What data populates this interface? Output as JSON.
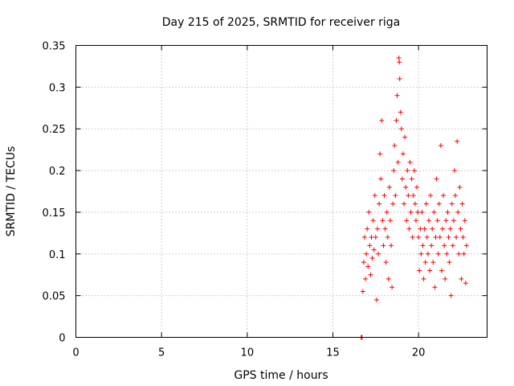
{
  "chart_data": {
    "type": "scatter",
    "title": "Day 215 of 2025, SRMTID for receiver riga",
    "xlabel": "GPS time / hours",
    "ylabel": "SRMTID / TECUs",
    "xlim": [
      0,
      24
    ],
    "ylim": [
      0,
      0.35
    ],
    "x_ticks": [
      0,
      5,
      10,
      15,
      20
    ],
    "x_tick_labels": [
      "0",
      "5",
      "10",
      "15",
      "20"
    ],
    "y_ticks": [
      0,
      0.05,
      0.1,
      0.15,
      0.2,
      0.25,
      0.3,
      0.35
    ],
    "y_tick_labels": [
      "0",
      "0.05",
      "0.1",
      "0.15",
      "0.2",
      "0.25",
      "0.3",
      "0.35"
    ],
    "grid": true,
    "marker": "+",
    "color": "#ff0000",
    "series": [
      {
        "name": "SRMTID",
        "points": [
          [
            16.65,
            0.0
          ],
          [
            16.68,
            0.0
          ],
          [
            16.7,
            0.0
          ],
          [
            16.75,
            0.055
          ],
          [
            16.8,
            0.09
          ],
          [
            16.85,
            0.12
          ],
          [
            16.9,
            0.07
          ],
          [
            16.95,
            0.1
          ],
          [
            17.0,
            0.13
          ],
          [
            17.05,
            0.085
          ],
          [
            17.1,
            0.15
          ],
          [
            17.15,
            0.11
          ],
          [
            17.2,
            0.075
          ],
          [
            17.25,
            0.12
          ],
          [
            17.3,
            0.095
          ],
          [
            17.35,
            0.14
          ],
          [
            17.4,
            0.105
          ],
          [
            17.45,
            0.17
          ],
          [
            17.5,
            0.12
          ],
          [
            17.55,
            0.045
          ],
          [
            17.6,
            0.13
          ],
          [
            17.65,
            0.1
          ],
          [
            17.7,
            0.16
          ],
          [
            17.75,
            0.22
          ],
          [
            17.8,
            0.19
          ],
          [
            17.85,
            0.26
          ],
          [
            17.9,
            0.14
          ],
          [
            17.95,
            0.11
          ],
          [
            18.0,
            0.17
          ],
          [
            18.05,
            0.13
          ],
          [
            18.1,
            0.09
          ],
          [
            18.15,
            0.15
          ],
          [
            18.2,
            0.12
          ],
          [
            18.25,
            0.07
          ],
          [
            18.3,
            0.18
          ],
          [
            18.35,
            0.14
          ],
          [
            18.4,
            0.11
          ],
          [
            18.45,
            0.06
          ],
          [
            18.5,
            0.16
          ],
          [
            18.55,
            0.2
          ],
          [
            18.6,
            0.23
          ],
          [
            18.65,
            0.17
          ],
          [
            18.7,
            0.26
          ],
          [
            18.75,
            0.29
          ],
          [
            18.8,
            0.21
          ],
          [
            18.85,
            0.335
          ],
          [
            18.88,
            0.33
          ],
          [
            18.9,
            0.31
          ],
          [
            18.95,
            0.27
          ],
          [
            19.0,
            0.25
          ],
          [
            19.05,
            0.19
          ],
          [
            19.1,
            0.22
          ],
          [
            19.15,
            0.16
          ],
          [
            19.2,
            0.24
          ],
          [
            19.25,
            0.18
          ],
          [
            19.3,
            0.14
          ],
          [
            19.35,
            0.2
          ],
          [
            19.4,
            0.17
          ],
          [
            19.45,
            0.13
          ],
          [
            19.5,
            0.21
          ],
          [
            19.55,
            0.15
          ],
          [
            19.6,
            0.19
          ],
          [
            19.65,
            0.12
          ],
          [
            19.7,
            0.17
          ],
          [
            19.75,
            0.2
          ],
          [
            19.8,
            0.16
          ],
          [
            19.85,
            0.14
          ],
          [
            19.9,
            0.18
          ],
          [
            19.95,
            0.15
          ],
          [
            20.0,
            0.12
          ],
          [
            20.05,
            0.08
          ],
          [
            20.1,
            0.13
          ],
          [
            20.15,
            0.1
          ],
          [
            20.2,
            0.15
          ],
          [
            20.25,
            0.11
          ],
          [
            20.3,
            0.07
          ],
          [
            20.35,
            0.13
          ],
          [
            20.4,
            0.09
          ],
          [
            20.45,
            0.16
          ],
          [
            20.5,
            0.12
          ],
          [
            20.55,
            0.1
          ],
          [
            20.6,
            0.14
          ],
          [
            20.65,
            0.08
          ],
          [
            20.7,
            0.17
          ],
          [
            20.75,
            0.11
          ],
          [
            20.8,
            0.13
          ],
          [
            20.85,
            0.09
          ],
          [
            20.9,
            0.15
          ],
          [
            20.95,
            0.06
          ],
          [
            21.0,
            0.12
          ],
          [
            21.05,
            0.19
          ],
          [
            21.1,
            0.14
          ],
          [
            21.15,
            0.1
          ],
          [
            21.2,
            0.16
          ],
          [
            21.25,
            0.12
          ],
          [
            21.3,
            0.23
          ],
          [
            21.35,
            0.08
          ],
          [
            21.4,
            0.13
          ],
          [
            21.45,
            0.17
          ],
          [
            21.5,
            0.11
          ],
          [
            21.55,
            0.07
          ],
          [
            21.6,
            0.14
          ],
          [
            21.65,
            0.1
          ],
          [
            21.7,
            0.15
          ],
          [
            21.75,
            0.12
          ],
          [
            21.8,
            0.09
          ],
          [
            21.85,
            0.13
          ],
          [
            21.9,
            0.05
          ],
          [
            21.95,
            0.16
          ],
          [
            22.0,
            0.11
          ],
          [
            22.05,
            0.14
          ],
          [
            22.1,
            0.2
          ],
          [
            22.15,
            0.17
          ],
          [
            22.2,
            0.12
          ],
          [
            22.25,
            0.235
          ],
          [
            22.3,
            0.15
          ],
          [
            22.35,
            0.1
          ],
          [
            22.4,
            0.18
          ],
          [
            22.45,
            0.13
          ],
          [
            22.5,
            0.07
          ],
          [
            22.55,
            0.16
          ],
          [
            22.6,
            0.12
          ],
          [
            22.65,
            0.1
          ],
          [
            22.7,
            0.14
          ],
          [
            22.75,
            0.065
          ],
          [
            22.8,
            0.11
          ]
        ]
      }
    ]
  }
}
